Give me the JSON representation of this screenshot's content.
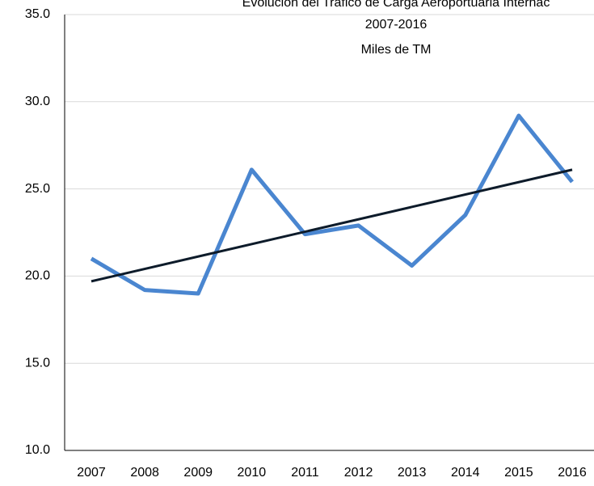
{
  "chart_data": {
    "type": "line",
    "title": [
      "Evolución del Tráfico de Carga Aeroportuaria Internac",
      "2007-2016",
      "Miles de TM"
    ],
    "categories": [
      "2007",
      "2008",
      "2009",
      "2010",
      "2011",
      "2012",
      "2013",
      "2014",
      "2015",
      "2016"
    ],
    "series": [
      {
        "color": "#4a86d0",
        "values": [
          21.0,
          19.2,
          19.0,
          26.1,
          22.4,
          22.9,
          20.6,
          23.5,
          29.2,
          25.4
        ]
      }
    ],
    "trendline": {
      "color": "#0d1b2a",
      "values": [
        19.7,
        26.1
      ]
    },
    "ylim": [
      10,
      35
    ],
    "yticks": [
      {
        "value": 10,
        "label": "10.0"
      },
      {
        "value": 15,
        "label": "15.0"
      },
      {
        "value": 20,
        "label": "20.0"
      },
      {
        "value": 25,
        "label": "25.0"
      },
      {
        "value": 30,
        "label": "30.0"
      },
      {
        "value": 35,
        "label": "35.0"
      }
    ],
    "grid": true
  }
}
